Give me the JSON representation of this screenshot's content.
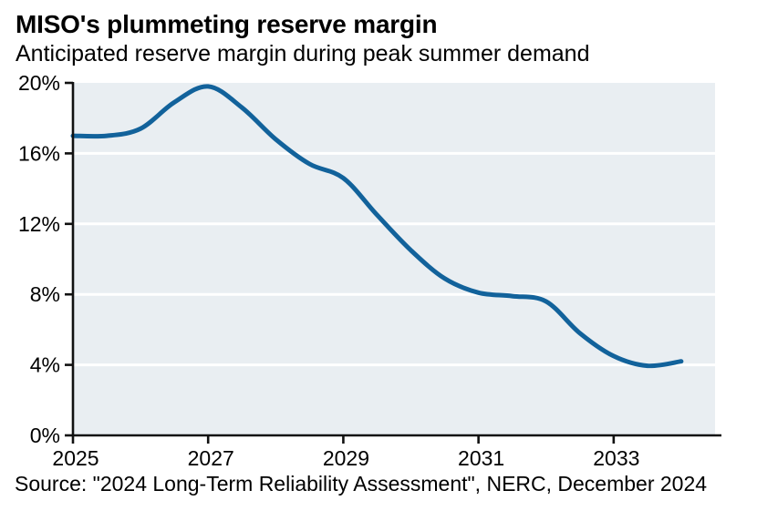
{
  "header": {
    "title": "MISO's plummeting reserve margin",
    "subtitle": "Anticipated reserve margin during peak summer demand"
  },
  "footer": {
    "source": "Source: \"2024 Long-Term Reliability Assessment\", NERC, December 2024"
  },
  "colors": {
    "line": "#12629b",
    "plot_bg": "#e9eef2",
    "grid": "#ffffff",
    "axis": "#111111",
    "text": "#000000",
    "page_bg": "#ffffff"
  },
  "chart_data": {
    "type": "line",
    "title": "MISO's plummeting reserve margin",
    "subtitle": "Anticipated reserve margin during peak summer demand",
    "source": "Source: \"2024 Long-Term Reliability Assessment\", NERC, December 2024",
    "series_name": "Anticipated reserve margin during peak summer demand",
    "xlabel": "",
    "ylabel": "",
    "x": [
      2025,
      2025.5,
      2026,
      2026.5,
      2027,
      2027.5,
      2028,
      2028.5,
      2029,
      2029.5,
      2030,
      2030.5,
      2031,
      2031.5,
      2032,
      2032.5,
      2033,
      2033.5,
      2034
    ],
    "values": [
      17.0,
      17.0,
      17.4,
      18.9,
      19.8,
      18.6,
      16.8,
      15.4,
      14.6,
      12.5,
      10.5,
      8.9,
      8.1,
      7.9,
      7.6,
      5.8,
      4.5,
      3.95,
      4.2
    ],
    "xlim": [
      2025,
      2034.5
    ],
    "ylim": [
      0,
      20
    ],
    "xticks": {
      "values": [
        2025,
        2027,
        2029,
        2031,
        2033
      ],
      "labels": [
        "2025",
        "2027",
        "2029",
        "2031",
        "2033"
      ]
    },
    "yticks": {
      "values": [
        0,
        4,
        8,
        12,
        16,
        20
      ],
      "labels": [
        "0%",
        "4%",
        "8%",
        "12%",
        "16%",
        "20%"
      ]
    },
    "grid": "horizontal, white lines on shaded plot area",
    "legend": "none"
  }
}
